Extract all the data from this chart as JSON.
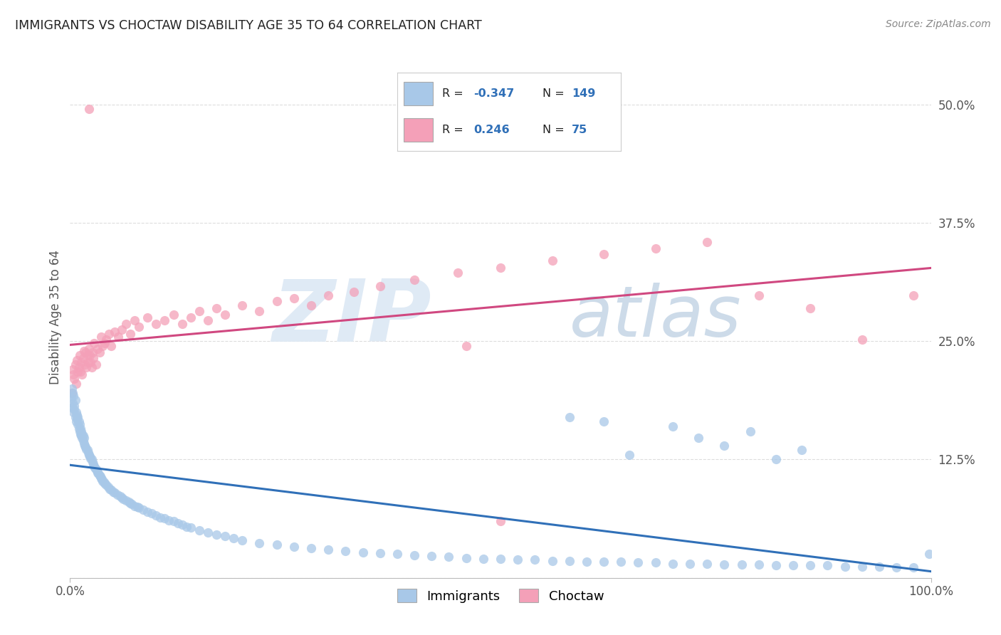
{
  "title": "IMMIGRANTS VS CHOCTAW DISABILITY AGE 35 TO 64 CORRELATION CHART",
  "source": "Source: ZipAtlas.com",
  "ylabel": "Disability Age 35 to 64",
  "xmin": 0.0,
  "xmax": 1.0,
  "ymin": 0.0,
  "ymax": 0.55,
  "yticks": [
    0.0,
    0.125,
    0.25,
    0.375,
    0.5
  ],
  "ytick_labels": [
    "",
    "12.5%",
    "25.0%",
    "37.5%",
    "50.0%"
  ],
  "blue_R": -0.347,
  "blue_N": 149,
  "pink_R": 0.246,
  "pink_N": 75,
  "blue_color": "#a8c8e8",
  "pink_color": "#f4a0b8",
  "blue_line_color": "#3070b8",
  "pink_line_color": "#d04880",
  "legend_label_blue": "Immigrants",
  "legend_label_pink": "Choctaw",
  "watermark_zip": "ZIP",
  "watermark_atlas": "atlas",
  "background_color": "#ffffff",
  "grid_color": "#dddddd",
  "blue_x": [
    0.001,
    0.002,
    0.002,
    0.003,
    0.003,
    0.004,
    0.004,
    0.005,
    0.005,
    0.006,
    0.006,
    0.007,
    0.007,
    0.008,
    0.008,
    0.009,
    0.009,
    0.01,
    0.01,
    0.011,
    0.011,
    0.012,
    0.012,
    0.013,
    0.013,
    0.014,
    0.014,
    0.015,
    0.015,
    0.016,
    0.016,
    0.017,
    0.018,
    0.019,
    0.02,
    0.021,
    0.022,
    0.023,
    0.024,
    0.025,
    0.026,
    0.027,
    0.028,
    0.029,
    0.03,
    0.031,
    0.032,
    0.033,
    0.034,
    0.035,
    0.036,
    0.037,
    0.038,
    0.039,
    0.04,
    0.042,
    0.044,
    0.046,
    0.048,
    0.05,
    0.052,
    0.055,
    0.058,
    0.06,
    0.062,
    0.065,
    0.068,
    0.07,
    0.072,
    0.075,
    0.078,
    0.08,
    0.085,
    0.09,
    0.095,
    0.1,
    0.105,
    0.11,
    0.115,
    0.12,
    0.125,
    0.13,
    0.135,
    0.14,
    0.15,
    0.16,
    0.17,
    0.18,
    0.19,
    0.2,
    0.22,
    0.24,
    0.26,
    0.28,
    0.3,
    0.32,
    0.34,
    0.36,
    0.38,
    0.4,
    0.42,
    0.44,
    0.46,
    0.48,
    0.5,
    0.52,
    0.54,
    0.56,
    0.58,
    0.6,
    0.62,
    0.64,
    0.66,
    0.68,
    0.7,
    0.72,
    0.74,
    0.76,
    0.78,
    0.8,
    0.82,
    0.84,
    0.86,
    0.88,
    0.9,
    0.92,
    0.94,
    0.96,
    0.98,
    0.65,
    0.7,
    0.73,
    0.76,
    0.79,
    0.82,
    0.85,
    0.58,
    0.62,
    0.998
  ],
  "blue_y": [
    0.19,
    0.2,
    0.18,
    0.195,
    0.185,
    0.175,
    0.192,
    0.178,
    0.182,
    0.17,
    0.188,
    0.165,
    0.175,
    0.168,
    0.172,
    0.162,
    0.17,
    0.158,
    0.165,
    0.155,
    0.162,
    0.152,
    0.158,
    0.15,
    0.155,
    0.148,
    0.152,
    0.145,
    0.15,
    0.142,
    0.148,
    0.14,
    0.138,
    0.136,
    0.135,
    0.132,
    0.13,
    0.128,
    0.126,
    0.125,
    0.122,
    0.12,
    0.118,
    0.116,
    0.115,
    0.113,
    0.111,
    0.11,
    0.108,
    0.107,
    0.105,
    0.104,
    0.102,
    0.101,
    0.1,
    0.098,
    0.096,
    0.094,
    0.093,
    0.091,
    0.09,
    0.088,
    0.086,
    0.085,
    0.083,
    0.082,
    0.08,
    0.079,
    0.078,
    0.076,
    0.075,
    0.074,
    0.072,
    0.07,
    0.068,
    0.066,
    0.064,
    0.063,
    0.061,
    0.06,
    0.058,
    0.056,
    0.054,
    0.053,
    0.05,
    0.048,
    0.046,
    0.044,
    0.042,
    0.04,
    0.037,
    0.035,
    0.033,
    0.031,
    0.03,
    0.028,
    0.027,
    0.026,
    0.025,
    0.024,
    0.023,
    0.022,
    0.021,
    0.02,
    0.02,
    0.019,
    0.019,
    0.018,
    0.018,
    0.017,
    0.017,
    0.017,
    0.016,
    0.016,
    0.015,
    0.015,
    0.015,
    0.014,
    0.014,
    0.014,
    0.013,
    0.013,
    0.013,
    0.013,
    0.012,
    0.012,
    0.012,
    0.011,
    0.011,
    0.13,
    0.16,
    0.148,
    0.14,
    0.155,
    0.125,
    0.135,
    0.17,
    0.165,
    0.025
  ],
  "pink_x": [
    0.002,
    0.003,
    0.004,
    0.005,
    0.006,
    0.007,
    0.008,
    0.009,
    0.01,
    0.011,
    0.012,
    0.013,
    0.014,
    0.015,
    0.016,
    0.017,
    0.018,
    0.019,
    0.02,
    0.021,
    0.022,
    0.023,
    0.024,
    0.025,
    0.026,
    0.027,
    0.028,
    0.03,
    0.032,
    0.034,
    0.036,
    0.038,
    0.04,
    0.042,
    0.045,
    0.048,
    0.052,
    0.056,
    0.06,
    0.065,
    0.07,
    0.075,
    0.08,
    0.09,
    0.1,
    0.11,
    0.12,
    0.13,
    0.14,
    0.15,
    0.16,
    0.17,
    0.18,
    0.2,
    0.22,
    0.24,
    0.26,
    0.28,
    0.3,
    0.33,
    0.36,
    0.4,
    0.45,
    0.5,
    0.56,
    0.62,
    0.68,
    0.74,
    0.8,
    0.86,
    0.92,
    0.98,
    0.022,
    0.46,
    0.5
  ],
  "pink_y": [
    0.195,
    0.22,
    0.215,
    0.21,
    0.225,
    0.205,
    0.23,
    0.218,
    0.222,
    0.235,
    0.218,
    0.228,
    0.215,
    0.232,
    0.24,
    0.225,
    0.238,
    0.222,
    0.235,
    0.228,
    0.242,
    0.235,
    0.228,
    0.222,
    0.238,
    0.232,
    0.248,
    0.225,
    0.242,
    0.238,
    0.255,
    0.245,
    0.248,
    0.252,
    0.258,
    0.245,
    0.26,
    0.255,
    0.262,
    0.268,
    0.258,
    0.272,
    0.265,
    0.275,
    0.268,
    0.272,
    0.278,
    0.268,
    0.275,
    0.282,
    0.272,
    0.285,
    0.278,
    0.288,
    0.282,
    0.292,
    0.295,
    0.288,
    0.298,
    0.302,
    0.308,
    0.315,
    0.322,
    0.328,
    0.335,
    0.342,
    0.348,
    0.355,
    0.298,
    0.285,
    0.252,
    0.298,
    0.495,
    0.245,
    0.06
  ]
}
